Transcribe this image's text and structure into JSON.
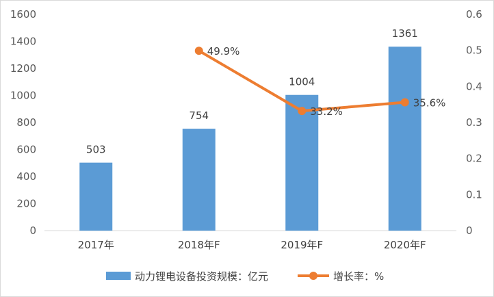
{
  "chart_data": {
    "type": "bar",
    "categories": [
      "2017年",
      "2018年F",
      "2019年F",
      "2020年F"
    ],
    "series": [
      {
        "name": "动力锂电设备投资规模：亿元",
        "type": "bar",
        "axis": "left",
        "values": [
          503,
          754,
          1004,
          1361
        ],
        "labels": [
          "503",
          "754",
          "1004",
          "1361"
        ],
        "color": "#5b9bd5"
      },
      {
        "name": "增长率：%",
        "type": "line",
        "axis": "right",
        "values": [
          null,
          0.499,
          0.332,
          0.356
        ],
        "labels": [
          "",
          "49.9%",
          "33.2%",
          "35.6%"
        ],
        "color": "#ed7d31"
      }
    ],
    "y_left": {
      "range": [
        0,
        1600
      ],
      "ticks": [
        "0",
        "200",
        "400",
        "600",
        "800",
        "1000",
        "1200",
        "1400",
        "1600"
      ]
    },
    "y_right": {
      "range": [
        0,
        0.6
      ],
      "ticks": [
        "0",
        "0.1",
        "0.2",
        "0.3",
        "0.4",
        "0.5",
        "0.6"
      ]
    },
    "grid": false,
    "legend": "bottom"
  }
}
